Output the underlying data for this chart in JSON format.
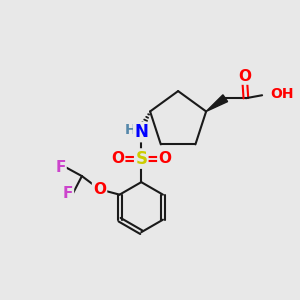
{
  "background_color": "#e8e8e8",
  "bond_color": "#1a1a1a",
  "atom_colors": {
    "O": "#ff0000",
    "N": "#0000ff",
    "S": "#cccc00",
    "F": "#cc44cc",
    "H_grey": "#5588aa",
    "C": "#1a1a1a"
  },
  "font_size": 11
}
